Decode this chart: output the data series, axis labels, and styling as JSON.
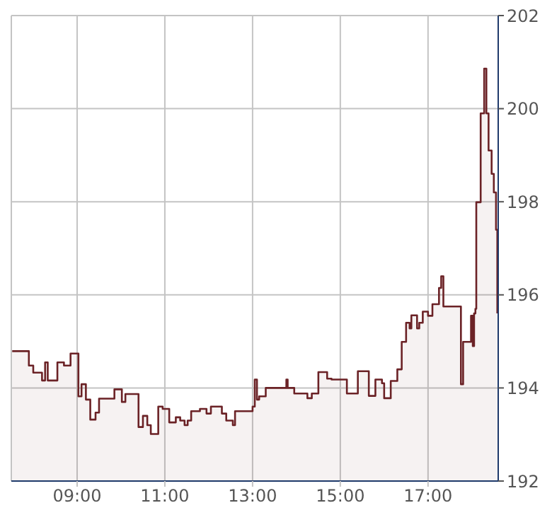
{
  "chart_data": {
    "type": "area",
    "xlim": [
      7.5,
      18.6
    ],
    "xticks": [
      {
        "value": 9,
        "label": "09:00"
      },
      {
        "value": 11,
        "label": "11:00"
      },
      {
        "value": 13,
        "label": "13:00"
      },
      {
        "value": 15,
        "label": "15:00"
      },
      {
        "value": 17,
        "label": "17:00"
      }
    ],
    "ylim": [
      192,
      202
    ],
    "yticks": [
      192,
      194,
      196,
      198,
      200,
      202
    ],
    "grid": true,
    "legend": false,
    "series": [
      {
        "color": "#6b2226",
        "x": [
          7.52,
          7.9,
          7.9,
          8.0,
          8.0,
          8.2,
          8.2,
          8.27,
          8.27,
          8.33,
          8.33,
          8.55,
          8.55,
          8.7,
          8.7,
          8.85,
          8.85,
          9.03,
          9.03,
          9.1,
          9.1,
          9.2,
          9.2,
          9.3,
          9.3,
          9.42,
          9.42,
          9.5,
          9.5,
          9.85,
          9.85,
          10.02,
          10.02,
          10.1,
          10.1,
          10.4,
          10.4,
          10.5,
          10.5,
          10.6,
          10.6,
          10.68,
          10.68,
          10.85,
          10.85,
          10.95,
          10.95,
          11.1,
          11.1,
          11.25,
          11.25,
          11.35,
          11.35,
          11.45,
          11.45,
          11.52,
          11.52,
          11.6,
          11.6,
          11.8,
          11.8,
          11.95,
          11.95,
          12.05,
          12.05,
          12.3,
          12.3,
          12.4,
          12.4,
          12.55,
          12.55,
          12.6,
          12.6,
          13.0,
          13.0,
          13.05,
          13.05,
          13.1,
          13.1,
          13.15,
          13.15,
          13.3,
          13.3,
          13.77,
          13.77,
          13.8,
          13.8,
          13.95,
          13.95,
          14.25,
          14.25,
          14.35,
          14.35,
          14.5,
          14.5,
          14.7,
          14.7,
          14.8,
          14.8,
          15.15,
          15.15,
          15.4,
          15.4,
          15.65,
          15.65,
          15.8,
          15.8,
          15.95,
          15.95,
          16.0,
          16.0,
          16.15,
          16.15,
          16.3,
          16.3,
          16.4,
          16.4,
          16.5,
          16.5,
          16.58,
          16.58,
          16.62,
          16.62,
          16.75,
          16.75,
          16.8,
          16.8,
          16.88,
          16.88,
          17.0,
          17.0,
          17.1,
          17.1,
          17.25,
          17.25,
          17.3,
          17.3,
          17.35,
          17.35,
          17.75,
          17.75,
          17.8,
          17.8,
          17.98,
          17.98,
          18.02,
          18.02,
          18.05,
          18.05,
          18.08,
          18.08,
          18.1,
          18.1,
          18.2,
          18.2,
          18.28,
          18.28,
          18.33,
          18.33,
          18.38,
          18.38,
          18.45,
          18.45,
          18.5,
          18.5,
          18.55,
          18.55,
          18.58,
          18.58
        ],
        "values": [
          194.79,
          194.79,
          194.48,
          194.48,
          194.33,
          194.33,
          194.16,
          194.16,
          194.55,
          194.55,
          194.16,
          194.16,
          194.55,
          194.55,
          194.48,
          194.48,
          194.74,
          194.74,
          193.82,
          193.82,
          194.08,
          194.08,
          193.75,
          193.75,
          193.32,
          193.32,
          193.47,
          193.47,
          193.77,
          193.77,
          193.97,
          193.97,
          193.7,
          193.7,
          193.87,
          193.87,
          193.16,
          193.16,
          193.4,
          193.4,
          193.2,
          193.2,
          193.01,
          193.01,
          193.6,
          193.6,
          193.55,
          193.55,
          193.26,
          193.26,
          193.37,
          193.37,
          193.3,
          193.3,
          193.2,
          193.2,
          193.3,
          193.3,
          193.5,
          193.5,
          193.55,
          193.55,
          193.45,
          193.45,
          193.6,
          193.6,
          193.45,
          193.45,
          193.3,
          193.3,
          193.2,
          193.2,
          193.5,
          193.5,
          193.6,
          193.6,
          194.18,
          194.18,
          193.75,
          193.75,
          193.82,
          193.82,
          194.0,
          194.0,
          194.18,
          194.18,
          194.0,
          194.0,
          193.88,
          193.88,
          193.78,
          193.78,
          193.88,
          193.88,
          194.34,
          194.34,
          194.2,
          194.2,
          194.18,
          194.18,
          193.88,
          193.88,
          194.36,
          194.36,
          193.83,
          193.83,
          194.18,
          194.18,
          194.1,
          194.1,
          193.78,
          193.78,
          194.15,
          194.15,
          194.4,
          194.4,
          194.99,
          194.99,
          195.4,
          195.4,
          195.28,
          195.28,
          195.56,
          195.56,
          195.28,
          195.28,
          195.4,
          195.4,
          195.64,
          195.64,
          195.55,
          195.55,
          195.8,
          195.8,
          196.15,
          196.15,
          196.4,
          196.4,
          195.75,
          195.75,
          194.08,
          194.08,
          194.99,
          194.99,
          195.55,
          195.55,
          194.9,
          194.9,
          195.6,
          195.6,
          195.7,
          195.7,
          197.99,
          197.99,
          199.9,
          199.9,
          200.86,
          200.86,
          199.9,
          199.9,
          199.1,
          199.1,
          198.6,
          198.6,
          198.2,
          198.2,
          197.4,
          197.4,
          195.6
        ]
      }
    ]
  }
}
